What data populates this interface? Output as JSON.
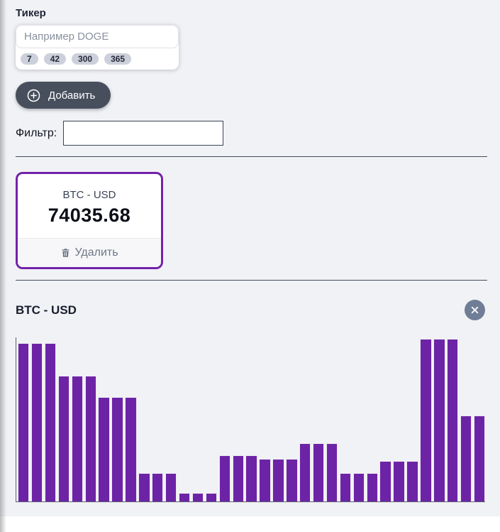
{
  "colors": {
    "page_bg": "#f1f2f5",
    "bar_purple": "#6d23a6",
    "card_border_purple": "#7322aa",
    "dark_button_bg": "#474f5d",
    "badge_bg": "#ccd0da",
    "close_button_bg": "#6f7d96",
    "axis_color": "#5a6272"
  },
  "ticker_form": {
    "label": "Тикер",
    "input_placeholder": "Например DOGE",
    "input_value": "",
    "period_badges": [
      "7",
      "42",
      "300",
      "365"
    ],
    "add_button_label": "Добавить",
    "filter_label": "Фильтр:",
    "filter_value": ""
  },
  "ticker_card": {
    "title": "BTC - USD",
    "price": "74035.68",
    "delete_label": "Удалить"
  },
  "chart_section": {
    "title": "BTC - USD",
    "close_icon": "close-icon"
  },
  "chart_data": {
    "type": "bar",
    "title": "BTC - USD",
    "series": [
      {
        "name": "BTC - USD",
        "values_percent_of_plot_height": [
          96.5,
          96.5,
          96.5,
          76.5,
          76.5,
          76.5,
          63.5,
          63.5,
          63.5,
          17.5,
          17.5,
          17.5,
          5,
          5,
          5,
          28,
          28,
          28,
          26,
          26,
          26,
          35.5,
          35.5,
          35.5,
          17.5,
          17.5,
          17.5,
          24.5,
          24.5,
          24.5,
          99,
          99,
          99,
          52.5,
          52.5
        ]
      }
    ],
    "bar_count": 35,
    "bar_color": "#6d23a6",
    "xlabel": "",
    "ylabel": "",
    "x_tick_labels": [],
    "y_tick_labels": [],
    "grid": false,
    "legend_visible": false,
    "ylim_percent": [
      0,
      100
    ]
  }
}
